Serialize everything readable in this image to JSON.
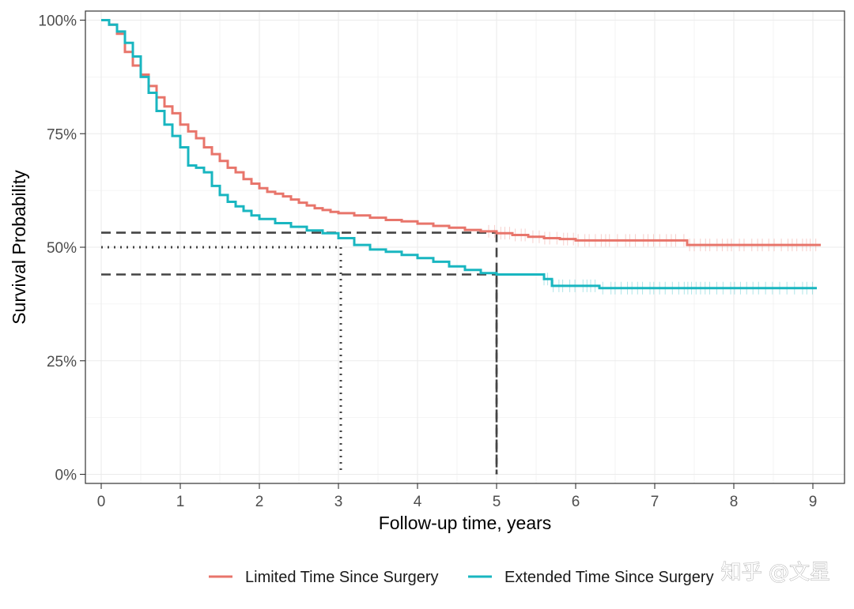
{
  "chart_data": {
    "type": "line",
    "xlabel": "Follow-up time, years",
    "ylabel": "Survival Probability",
    "xlim": [
      -0.2,
      9.4
    ],
    "ylim": [
      -0.02,
      1.02
    ],
    "x_ticks": [
      0,
      1,
      2,
      3,
      4,
      5,
      6,
      7,
      8,
      9
    ],
    "x_tick_labels": [
      "0",
      "1",
      "2",
      "3",
      "4",
      "5",
      "6",
      "7",
      "8",
      "9"
    ],
    "y_ticks": [
      0,
      0.25,
      0.5,
      0.75,
      1.0
    ],
    "y_tick_labels": [
      "0%",
      "25%",
      "50%",
      "75%",
      "100%"
    ],
    "grid": true,
    "legend_position": "bottom",
    "series": [
      {
        "name": "Limited Time Since Surgery",
        "color": "#e8756b",
        "censor_from": 4.9,
        "x": [
          0,
          0.1,
          0.2,
          0.3,
          0.4,
          0.5,
          0.6,
          0.7,
          0.8,
          0.9,
          1.0,
          1.1,
          1.2,
          1.3,
          1.4,
          1.5,
          1.6,
          1.7,
          1.8,
          1.9,
          2.0,
          2.1,
          2.2,
          2.3,
          2.4,
          2.5,
          2.6,
          2.7,
          2.8,
          2.9,
          3.0,
          3.2,
          3.4,
          3.6,
          3.8,
          4.0,
          4.2,
          4.4,
          4.6,
          4.8,
          5.0,
          5.2,
          5.4,
          5.6,
          5.8,
          6.0,
          6.5,
          7.0,
          7.4,
          7.41,
          8.0,
          9.1
        ],
        "y": [
          1.0,
          0.99,
          0.97,
          0.93,
          0.9,
          0.88,
          0.855,
          0.83,
          0.81,
          0.795,
          0.77,
          0.755,
          0.74,
          0.72,
          0.705,
          0.69,
          0.675,
          0.665,
          0.65,
          0.64,
          0.63,
          0.622,
          0.618,
          0.612,
          0.605,
          0.598,
          0.592,
          0.586,
          0.582,
          0.578,
          0.575,
          0.57,
          0.565,
          0.56,
          0.557,
          0.552,
          0.547,
          0.543,
          0.538,
          0.535,
          0.531,
          0.527,
          0.523,
          0.52,
          0.518,
          0.515,
          0.515,
          0.515,
          0.515,
          0.505,
          0.505,
          0.505
        ]
      },
      {
        "name": "Extended Time Since Surgery",
        "color": "#19b6c0",
        "censor_from": 5.6,
        "x": [
          0,
          0.1,
          0.2,
          0.3,
          0.4,
          0.5,
          0.6,
          0.7,
          0.8,
          0.9,
          1.0,
          1.1,
          1.2,
          1.3,
          1.4,
          1.5,
          1.6,
          1.7,
          1.8,
          1.9,
          2.0,
          2.2,
          2.4,
          2.6,
          2.8,
          3.0,
          3.2,
          3.4,
          3.6,
          3.8,
          4.0,
          4.2,
          4.4,
          4.6,
          4.8,
          5.0,
          5.2,
          5.4,
          5.5,
          5.6,
          5.7,
          6.0,
          6.3,
          7.0,
          8.0,
          9.05
        ],
        "y": [
          1.0,
          0.99,
          0.975,
          0.95,
          0.92,
          0.875,
          0.84,
          0.8,
          0.77,
          0.745,
          0.72,
          0.68,
          0.675,
          0.665,
          0.635,
          0.615,
          0.6,
          0.59,
          0.58,
          0.57,
          0.562,
          0.553,
          0.545,
          0.537,
          0.531,
          0.52,
          0.505,
          0.495,
          0.49,
          0.483,
          0.476,
          0.468,
          0.458,
          0.45,
          0.443,
          0.44,
          0.44,
          0.44,
          0.44,
          0.43,
          0.415,
          0.415,
          0.41,
          0.41,
          0.41,
          0.41
        ]
      }
    ],
    "reference_lines": [
      {
        "style": "dashed",
        "y": 0.532,
        "x": 5.0
      },
      {
        "style": "dashed",
        "y": 0.44,
        "x": 5.0
      },
      {
        "style": "dotted",
        "y": 0.5,
        "x": 3.03
      }
    ]
  },
  "watermark": "知乎 @文星"
}
